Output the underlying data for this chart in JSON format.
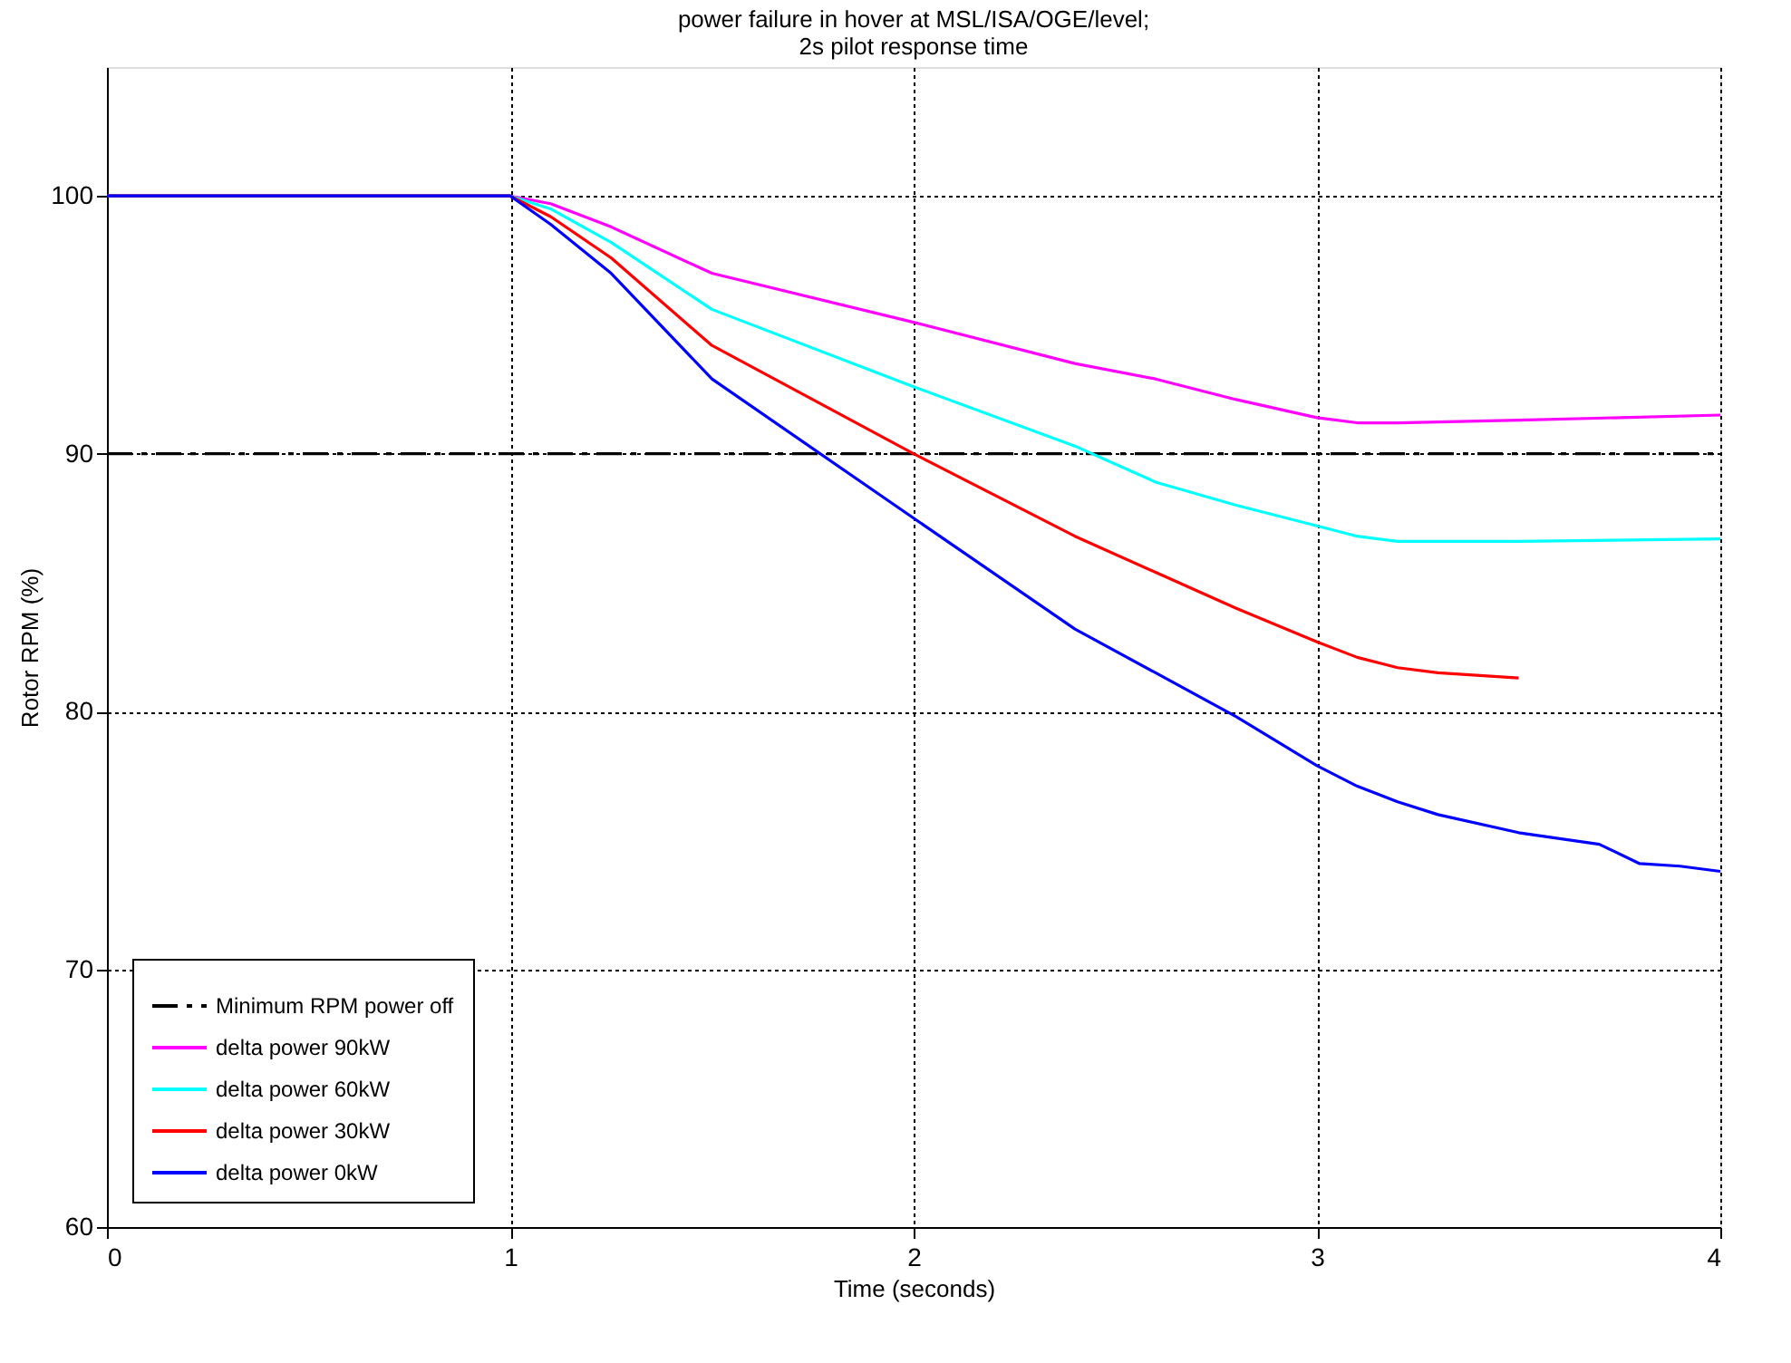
{
  "chart_data": {
    "type": "line",
    "title": "power failure in hover at MSL/ISA/OGE/level;\n2s pilot response time",
    "xlabel": "Time (seconds)",
    "ylabel": "Rotor RPM (%)",
    "xlim": [
      0,
      4
    ],
    "xticks": [
      0,
      1,
      2,
      3,
      4
    ],
    "ylim": [
      60,
      105
    ],
    "yticks": [
      60,
      70,
      80,
      90,
      100
    ],
    "grid": true,
    "legend": "bottom left",
    "marker": "none",
    "line_style": "solid",
    "series": [
      {
        "name": "Minimum RPM power off",
        "color": "#000000",
        "line_style": "dashed",
        "x": [
          0,
          4
        ],
        "values": [
          90,
          90
        ]
      },
      {
        "name": "delta power 90kW",
        "color": "#ff00ff",
        "x": [
          0,
          1,
          1.1,
          1.25,
          1.5,
          2,
          2.4,
          2.6,
          2.8,
          3,
          3.1,
          3.2,
          3.5,
          4
        ],
        "values": [
          100,
          100,
          99.7,
          98.8,
          97.0,
          95.1,
          93.5,
          92.9,
          92.1,
          91.4,
          91.2,
          91.2,
          91.3,
          91.5
        ]
      },
      {
        "name": "delta power 60kW",
        "color": "#00ffff",
        "x": [
          0,
          1,
          1.1,
          1.25,
          1.5,
          2,
          2.4,
          2.6,
          2.8,
          3,
          3.1,
          3.2,
          3.5,
          4
        ],
        "values": [
          100,
          100,
          99.5,
          98.2,
          95.6,
          92.6,
          90.3,
          88.9,
          88.0,
          87.2,
          86.8,
          86.6,
          86.6,
          86.7
        ]
      },
      {
        "name": "delta power 30kW",
        "color": "#ff0000",
        "x": [
          0,
          1,
          1.1,
          1.25,
          1.5,
          2,
          2.4,
          2.6,
          2.8,
          3,
          3.1,
          3.2,
          3.3,
          3.5
        ],
        "values": [
          100,
          100,
          99.2,
          97.6,
          94.2,
          90.0,
          86.8,
          85.4,
          84.0,
          82.7,
          82.1,
          81.7,
          81.5,
          81.3
        ]
      },
      {
        "name": "delta power 0kW",
        "color": "#0000ff",
        "x": [
          0,
          1,
          1.1,
          1.25,
          1.5,
          2,
          2.4,
          2.6,
          2.8,
          3,
          3.1,
          3.2,
          3.3,
          3.5,
          3.7,
          3.8,
          3.9,
          4
        ],
        "values": [
          100,
          100,
          98.9,
          97.0,
          92.9,
          87.5,
          83.2,
          81.5,
          79.8,
          77.9,
          77.1,
          76.5,
          76.0,
          75.3,
          74.85,
          74.1,
          74.0,
          73.8
        ]
      }
    ]
  }
}
